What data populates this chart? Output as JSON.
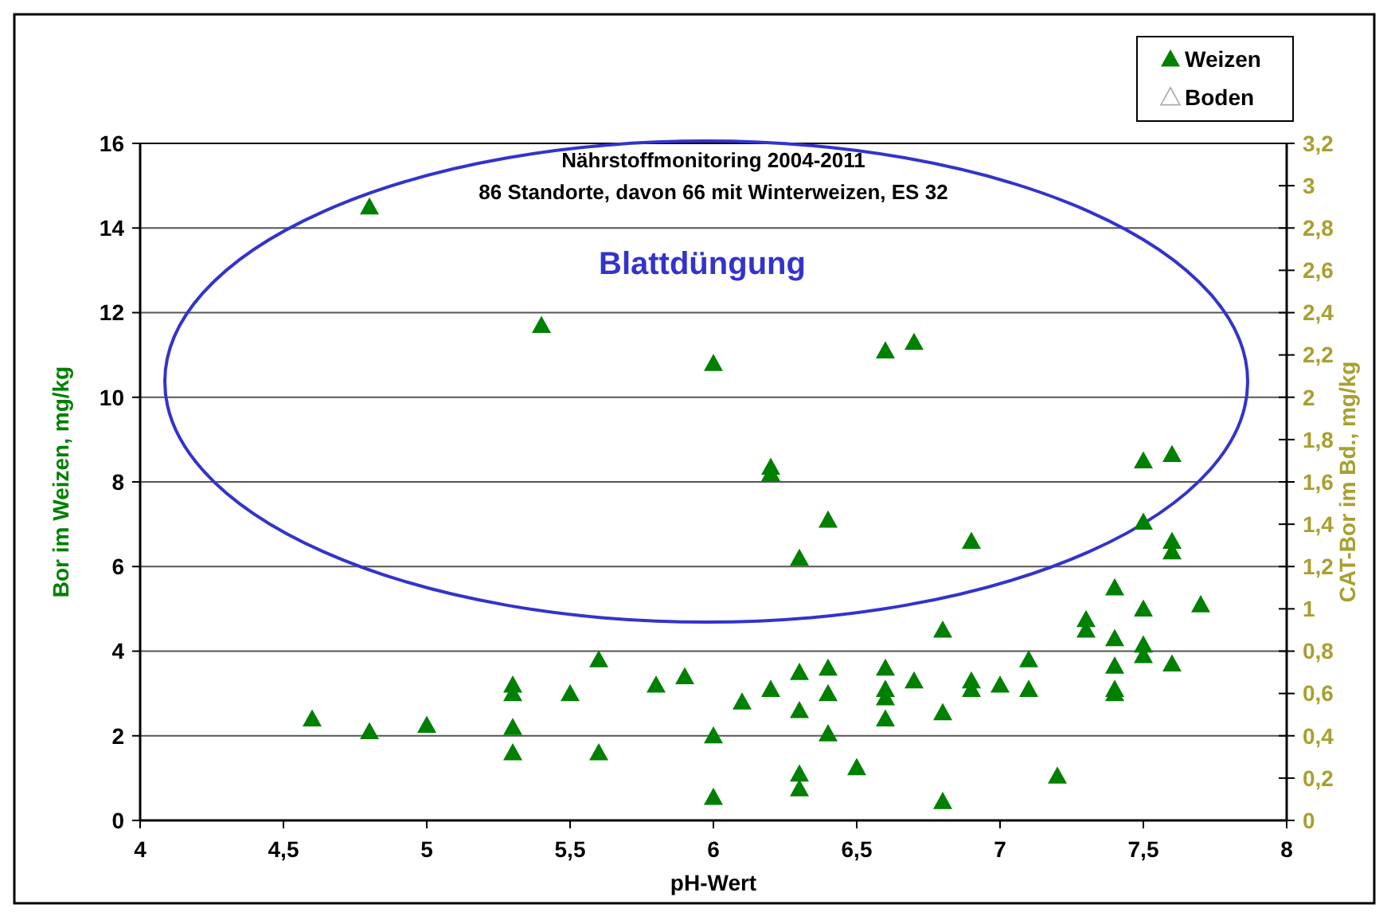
{
  "chart_data": {
    "type": "scatter",
    "title": "Nährstoffmonitoring 2004-2011",
    "subtitle": "86 Standorte, davon 66 mit Winterweizen, ES 32",
    "xlabel": "pH-Wert",
    "ylabel": "Bor im Weizen, mg/kg",
    "y2label": "CAT-Bor im Bd., mg/kg",
    "annotations": [
      "Blattdüngung"
    ],
    "xlim": [
      4,
      8
    ],
    "xticks": [
      4,
      {
        "value": 4.5,
        "label": "4,5"
      },
      5,
      {
        "value": 5.5,
        "label": "5,5"
      },
      6,
      {
        "value": 6.5,
        "label": "6,5"
      },
      7,
      {
        "value": 7.5,
        "label": "7,5"
      },
      8
    ],
    "ylim": [
      0,
      16
    ],
    "yticks": [
      0,
      2,
      4,
      6,
      8,
      10,
      12,
      14,
      16
    ],
    "y2lim": [
      0,
      3.2
    ],
    "y2ticks": [
      0,
      {
        "value": 0.2,
        "label": "0,2"
      },
      {
        "value": 0.4,
        "label": "0,4"
      },
      {
        "value": 0.6,
        "label": "0,6"
      },
      {
        "value": 0.8,
        "label": "0,8"
      },
      1,
      {
        "value": 1.2,
        "label": "1,2"
      },
      {
        "value": 1.4,
        "label": "1,4"
      },
      {
        "value": 1.6,
        "label": "1,6"
      },
      {
        "value": 1.8,
        "label": "1,8"
      },
      2,
      {
        "value": 2.2,
        "label": "2,2"
      },
      {
        "value": 2.4,
        "label": "2,4"
      },
      {
        "value": 2.6,
        "label": "2,6"
      },
      {
        "value": 2.8,
        "label": "2,8"
      },
      3,
      {
        "value": 3.2,
        "label": "3,2"
      }
    ],
    "grid": "y",
    "legend": "top right",
    "marker": "triangle",
    "series": [
      {
        "name": "Weizen",
        "color": "#008000",
        "x": [
          4.6,
          4.8,
          4.8,
          5.0,
          5.3,
          5.3,
          5.3,
          5.3,
          5.4,
          5.5,
          5.6,
          5.6,
          5.8,
          5.9,
          6.0,
          6.0,
          6.0,
          6.1,
          6.2,
          6.2,
          6.2,
          6.3,
          6.3,
          6.3,
          6.3,
          6.3,
          6.4,
          6.4,
          6.4,
          6.4,
          6.5,
          6.6,
          6.6,
          6.6,
          6.6,
          6.6,
          6.7,
          6.7,
          6.8,
          6.8,
          6.8,
          6.9,
          6.9,
          6.9,
          7.0,
          7.1,
          7.1,
          7.2,
          7.3,
          7.3,
          7.4,
          7.4,
          7.4,
          7.4,
          7.4,
          7.5,
          7.5,
          7.5,
          7.5,
          7.5,
          7.6,
          7.6,
          7.6,
          7.6,
          7.7
        ],
        "values": [
          2.4,
          14.5,
          2.1,
          2.25,
          3.2,
          3.0,
          2.2,
          1.6,
          11.7,
          3.0,
          3.8,
          1.6,
          3.2,
          3.4,
          10.8,
          2.0,
          0.55,
          2.8,
          8.35,
          8.2,
          3.1,
          6.2,
          3.5,
          2.6,
          1.1,
          0.75,
          7.1,
          3.6,
          3.0,
          2.05,
          1.25,
          11.1,
          3.6,
          3.1,
          2.9,
          2.4,
          11.3,
          3.3,
          4.5,
          2.55,
          0.45,
          6.6,
          3.3,
          3.1,
          3.2,
          3.8,
          3.1,
          1.05,
          4.75,
          4.5,
          5.5,
          4.3,
          3.65,
          3.1,
          3.0,
          8.5,
          7.05,
          5.0,
          4.15,
          3.9,
          8.65,
          6.6,
          6.35,
          3.7,
          5.1
        ]
      },
      {
        "name": "Boden",
        "color": "#ffffff"
      }
    ]
  }
}
